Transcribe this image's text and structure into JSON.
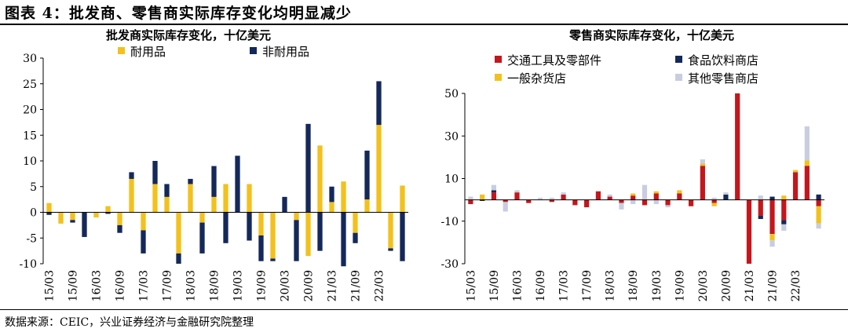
{
  "figure": {
    "title": "图表 4：批发商、零售商实际库存变化均明显减少",
    "source": "数据来源：CEIC，兴业证券经济与金融研究院整理"
  },
  "colors": {
    "durable": "#f3c11c",
    "nondurable": "#14285a",
    "transport": "#c4161c",
    "food": "#14285a",
    "general": "#f3c11c",
    "other": "#c8cde0"
  },
  "chart_data": [
    {
      "type": "bar",
      "stacked": true,
      "title": "批发商实际库存变化，十亿美元",
      "ylim": [
        -10,
        30
      ],
      "yticks": [
        -10,
        -5,
        0,
        5,
        10,
        15,
        20,
        25,
        30
      ],
      "x_tick_labels": [
        "15/03",
        "15/09",
        "16/03",
        "16/09",
        "17/03",
        "17/09",
        "18/03",
        "18/09",
        "19/03",
        "19/09",
        "20/03",
        "20/09",
        "21/03",
        "21/09",
        "22/03"
      ],
      "x_tick_every": 2,
      "legend": "top",
      "series": [
        {
          "name": "耐用品",
          "color_key": "durable",
          "values": [
            1.8,
            -2.2,
            -1.5,
            0,
            -1.0,
            1.2,
            -2.5,
            6.5,
            -3.5,
            5.5,
            3.0,
            -8.0,
            5.5,
            -2.0,
            3.0,
            5.5,
            0,
            5.5,
            -4.5,
            -9.0,
            0,
            -1.5,
            -8.5,
            13.0,
            2.0,
            6.0,
            -4.0,
            2.5,
            17.0,
            -7.0,
            5.2
          ]
        },
        {
          "name": "非耐用品",
          "color_key": "nondurable",
          "values": [
            -0.5,
            0,
            -0.5,
            -4.8,
            0,
            -0.3,
            -1.5,
            1.3,
            -4.5,
            4.5,
            2.5,
            -2.0,
            1.0,
            -6.0,
            6.0,
            -6.0,
            11.0,
            -5.5,
            -5.0,
            -0.5,
            3.0,
            -8.0,
            17.2,
            -7.5,
            3.0,
            -10.5,
            -2.0,
            9.5,
            8.5,
            -0.5,
            -9.5
          ]
        }
      ]
    },
    {
      "type": "bar",
      "stacked": true,
      "title": "零售商实际库存变化，十亿美元",
      "ylim": [
        -30,
        50
      ],
      "yticks": [
        -30,
        -10,
        10,
        30,
        50
      ],
      "x_tick_labels": [
        "15/03",
        "15/09",
        "16/03",
        "16/09",
        "17/03",
        "17/09",
        "18/03",
        "18/09",
        "19/03",
        "19/09",
        "20/03",
        "20/09",
        "21/03",
        "21/09",
        "22/03"
      ],
      "x_tick_every": 2,
      "legend": "top",
      "series": [
        {
          "name": "交通工具及零部件",
          "color_key": "transport",
          "values": [
            -2.0,
            0,
            3.5,
            -1.0,
            3.5,
            -1.5,
            0,
            -1.0,
            2.5,
            -2.5,
            -3.5,
            4.0,
            1.5,
            -1.5,
            2.0,
            -2.5,
            3.0,
            -2.5,
            3.0,
            -3.0,
            16.0,
            -1.5,
            0,
            50.0,
            -30.0,
            -7.5,
            -16.0,
            -9.5,
            13.0,
            16.0,
            -3.0
          ]
        },
        {
          "name": "食品饮料商店",
          "color_key": "food",
          "values": [
            0,
            -0.5,
            1.0,
            0,
            0,
            0,
            0,
            0,
            0,
            0,
            0,
            0,
            0,
            0,
            0,
            0,
            0,
            0,
            0,
            0,
            0,
            0,
            2.5,
            0,
            0,
            -1.5,
            1.5,
            -2.0,
            0,
            0,
            2.5
          ]
        },
        {
          "name": "一般杂货店",
          "color_key": "general",
          "values": [
            0,
            2.5,
            0,
            0,
            0,
            0,
            0,
            0,
            0,
            0,
            0,
            0,
            0,
            0,
            1.0,
            0,
            1.0,
            0,
            1.5,
            0,
            1.0,
            -1.5,
            0,
            0,
            0,
            0,
            -3.0,
            2.0,
            1.0,
            2.5,
            -8.0
          ]
        },
        {
          "name": "其他零售商店",
          "color_key": "other",
          "values": [
            1.5,
            0,
            2.5,
            -4.5,
            1.0,
            0,
            1.0,
            1.0,
            1.0,
            0,
            0,
            0,
            1.0,
            -3.0,
            -2.0,
            7.0,
            -2.0,
            -1.0,
            0,
            0,
            2.0,
            1.0,
            1.0,
            0,
            0,
            2.0,
            -3.0,
            -3.0,
            0,
            16.0,
            -2.5
          ]
        }
      ]
    }
  ]
}
